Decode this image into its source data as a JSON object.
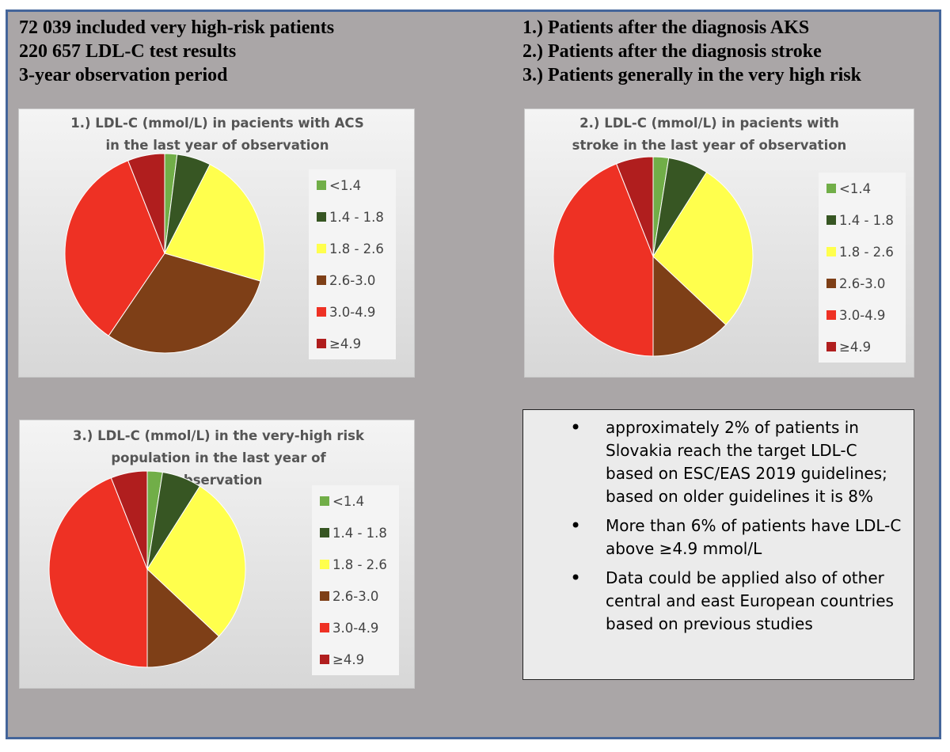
{
  "header": {
    "left": [
      "72 039 included very high-risk patients",
      "220 657 LDL-C test results",
      "3-year observation period"
    ],
    "right": [
      "1.) Patients after the diagnosis AKS",
      "2.) Patients after the diagnosis stroke",
      "3.) Patients generally in the very high risk"
    ]
  },
  "colors": {
    "lt1_4": "#71ae48",
    "r1_4_1_8": "#375623",
    "r1_8_2_6": "#ffff4d",
    "r2_6_3_0": "#7e3f17",
    "r3_0_4_9": "#ee3124",
    "ge4_9": "#b01e1e"
  },
  "chart_data": [
    {
      "type": "pie",
      "title": [
        "1.) LDL-C (mmol/L) in pacients with ACS",
        "in the last year of observation"
      ],
      "categories": [
        "<1.4",
        "1.4 - 1.8",
        "1.8 - 2.6",
        "2.6-3.0",
        "3.0-4.9",
        "≥4.9"
      ],
      "values": [
        2,
        5.5,
        22,
        30,
        34.5,
        6
      ],
      "legend_position": "right"
    },
    {
      "type": "pie",
      "title": [
        "2.) LDL-C (mmol/L)  in pacients with",
        "stroke in the last year of observation"
      ],
      "categories": [
        "<1.4",
        "1.4 - 1.8",
        "1.8 - 2.6",
        "2.6-3.0",
        "3.0-4.9",
        "≥4.9"
      ],
      "values": [
        2.5,
        6.5,
        28,
        13,
        44,
        6
      ],
      "legend_position": "right"
    },
    {
      "type": "pie",
      "title": [
        "3.) LDL-C (mmol/L) in the very-high risk",
        "population in the last year of",
        "observation"
      ],
      "categories": [
        "<1.4",
        "1.4 - 1.8",
        "1.8 - 2.6",
        "2.6-3.0",
        "3.0-4.9",
        "≥4.9"
      ],
      "values": [
        2.5,
        6.5,
        28,
        13,
        44,
        6
      ],
      "legend_position": "right"
    }
  ],
  "notes": [
    "approximately 2% of patients in Slovakia reach the target LDL-C based on ESC/EAS 2019 guidelines; based on older guidelines it is 8%",
    "More than 6% of patients have LDL-C above ≥4.9 mmol/L",
    "Data could be applied also of other central and east European countries based on previous studies"
  ]
}
